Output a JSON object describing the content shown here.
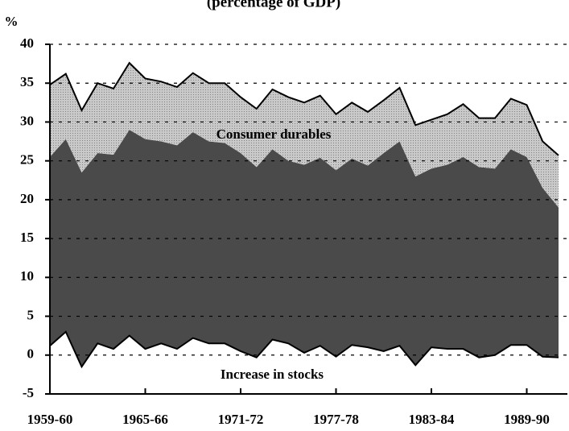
{
  "chart_data": {
    "type": "area",
    "stacked": true,
    "title": "(percentage of GDP)",
    "y_label": "%",
    "categories": [
      "1959-60",
      null,
      null,
      null,
      null,
      null,
      "1965-66",
      null,
      null,
      null,
      null,
      null,
      "1971-72",
      null,
      null,
      null,
      null,
      null,
      "1977-78",
      null,
      null,
      null,
      null,
      null,
      "1983-84",
      null,
      null,
      null,
      null,
      null,
      "1989-90",
      null,
      null
    ],
    "series": [
      {
        "name": "Increase in stocks",
        "color": "#ffffff",
        "values": [
          1.2,
          3.0,
          -1.5,
          1.5,
          0.8,
          2.5,
          0.8,
          1.5,
          0.8,
          2.2,
          1.5,
          1.5,
          0.5,
          -0.3,
          2.0,
          1.5,
          0.3,
          1.2,
          -0.2,
          1.3,
          1.0,
          0.5,
          1.2,
          -1.3,
          1.0,
          0.8,
          0.8,
          -0.3,
          0.0,
          1.3,
          1.3,
          -0.2,
          -0.3
        ]
      },
      {
        "color": "#4a4a4a",
        "values": [
          24.3,
          24.8,
          25.0,
          24.5,
          25.0,
          26.5,
          27.0,
          26.0,
          26.2,
          26.5,
          26.0,
          25.8,
          25.5,
          24.5,
          24.5,
          23.5,
          24.2,
          24.2,
          24.0,
          24.0,
          23.4,
          25.5,
          26.3,
          24.3,
          23.0,
          23.7,
          24.7,
          24.5,
          24.0,
          25.2,
          24.2,
          21.7,
          19.3
        ]
      },
      {
        "name": "Consumer durables",
        "color": "#c9c9c9",
        "values": [
          9.3,
          8.4,
          8.0,
          9.0,
          8.5,
          8.6,
          7.8,
          7.7,
          7.5,
          7.6,
          7.5,
          7.7,
          7.2,
          7.5,
          7.7,
          8.2,
          8.0,
          8.0,
          7.2,
          7.2,
          6.9,
          6.8,
          6.9,
          6.6,
          6.3,
          6.5,
          6.8,
          6.3,
          6.5,
          6.5,
          6.7,
          6.0,
          6.7
        ]
      }
    ],
    "ylim": [
      -5,
      40
    ],
    "yticks": [
      -5,
      0,
      5,
      10,
      15,
      20,
      25,
      30,
      35,
      40
    ],
    "grid": true
  }
}
